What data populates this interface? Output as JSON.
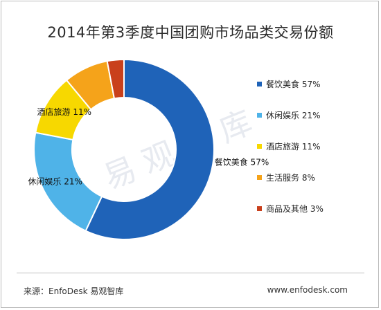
{
  "title": "2014年第3季度中国团购市场品类交易份额",
  "watermark": "易观智库",
  "footer": {
    "source": "来源：EnfoDesk 易观智库",
    "url": "www.enfodesk.com"
  },
  "chart_data": {
    "type": "pie",
    "style": "donut",
    "slices": [
      {
        "name": "餐饮美食",
        "value": 57,
        "color": "#1f63b8",
        "label": "餐饮美食 57%"
      },
      {
        "name": "休闲娱乐",
        "value": 21,
        "color": "#4fb3e8",
        "label": "休闲娱乐 21%"
      },
      {
        "name": "酒店旅游",
        "value": 11,
        "color": "#f7d800",
        "label": "酒店旅游 11%"
      },
      {
        "name": "生活服务",
        "value": 8,
        "color": "#f5a31a",
        "label": "生活服务 8%"
      },
      {
        "name": "商品及其他",
        "value": 3,
        "color": "#c9401c",
        "label": "商品及其他 3%"
      }
    ],
    "legend_position": "right",
    "legend": [
      "餐饮美食 57%",
      "休闲娱乐 21%",
      "酒店旅游 11%",
      "生活服务 8%",
      "商品及其他 3%"
    ]
  }
}
